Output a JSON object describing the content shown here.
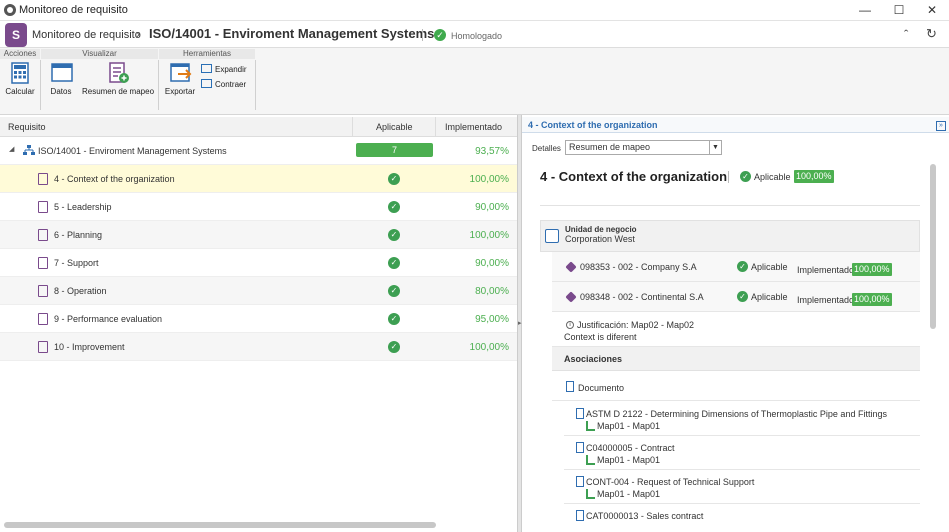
{
  "window": {
    "title": "Monitoreo de requisito"
  },
  "header": {
    "breadcrumb_root": "Monitoreo de requisito",
    "title": "ISO/14001 - Enviroment Management Systems",
    "status": "Homologado"
  },
  "ribbon": {
    "groups": [
      "Acciones",
      "Visualizar",
      "Herramientas"
    ],
    "calcular": "Calcular",
    "datos": "Datos",
    "resumen": "Resumen de mapeo",
    "exportar": "Exportar",
    "expandir": "Expandir",
    "contraer": "Contraer"
  },
  "grid": {
    "col_requisito": "Requisito",
    "col_aplicable": "Aplicable",
    "col_implementado": "Implementado",
    "root": {
      "label": "ISO/14001 - Enviroment Management Systems",
      "aplicable": "7",
      "implementado": "93,57%"
    },
    "rows": [
      {
        "label": "4 - Context of the organization",
        "implementado": "100,00%"
      },
      {
        "label": "5 - Leadership",
        "implementado": "90,00%"
      },
      {
        "label": "6 - Planning",
        "implementado": "100,00%"
      },
      {
        "label": "7 - Support",
        "implementado": "90,00%"
      },
      {
        "label": "8 - Operation",
        "implementado": "80,00%"
      },
      {
        "label": "9 - Performance evaluation",
        "implementado": "95,00%"
      },
      {
        "label": "10 - Improvement",
        "implementado": "100,00%"
      }
    ]
  },
  "panel": {
    "title": "4 - Context of the organization",
    "detalles_label": "Detalles",
    "detalles_value": "Resumen de mapeo",
    "heading": "4 - Context of the organization",
    "aplicable": "Aplicable",
    "pct": "100,00%",
    "unit_label": "Unidad de negocio",
    "unit_value": "Corporation West",
    "companies": [
      {
        "label": "098353 - 002 - Company S.A",
        "aplicable": "Aplicable",
        "implementado": "Implementado",
        "pct": "100,00%"
      },
      {
        "label": "098348 - 002 - Continental S.A",
        "aplicable": "Aplicable",
        "implementado": "Implementado",
        "pct": "100,00%"
      }
    ],
    "justificacion": "Justificación: Map02 - Map02",
    "justificacion_text": "Context is diferent",
    "asociaciones": "Asociaciones",
    "documento": "Documento",
    "docs": [
      {
        "title": "ASTM D 2122 - Determining Dimensions of Thermoplastic Pipe and Fittings",
        "map": "Map01 - Map01"
      },
      {
        "title": "C04000005 - Contract",
        "map": "Map01 - Map01"
      },
      {
        "title": "CONT-004 - Request of Technical Support",
        "map": "Map01 - Map01"
      },
      {
        "title": "CAT0000013 - Sales contract",
        "map": ""
      }
    ]
  }
}
